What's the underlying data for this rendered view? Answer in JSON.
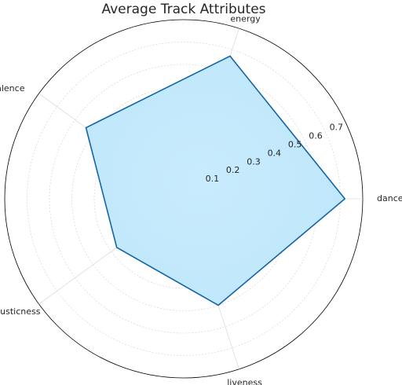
{
  "chart_data": {
    "type": "radar",
    "title": "Average Track Attributes",
    "axes": [
      "danceability",
      "energy",
      "valence",
      "acousticness",
      "liveness"
    ],
    "values": [
      0.72,
      0.67,
      0.54,
      0.37,
      0.5
    ],
    "radial_ticks": [
      "0.1",
      "0.2",
      "0.3",
      "0.4",
      "0.5",
      "0.6",
      "0.7"
    ],
    "rlim": [
      0,
      0.8
    ],
    "grid": true,
    "colors": {
      "line": "#1565a8",
      "fill": "#bfe6fb"
    }
  }
}
